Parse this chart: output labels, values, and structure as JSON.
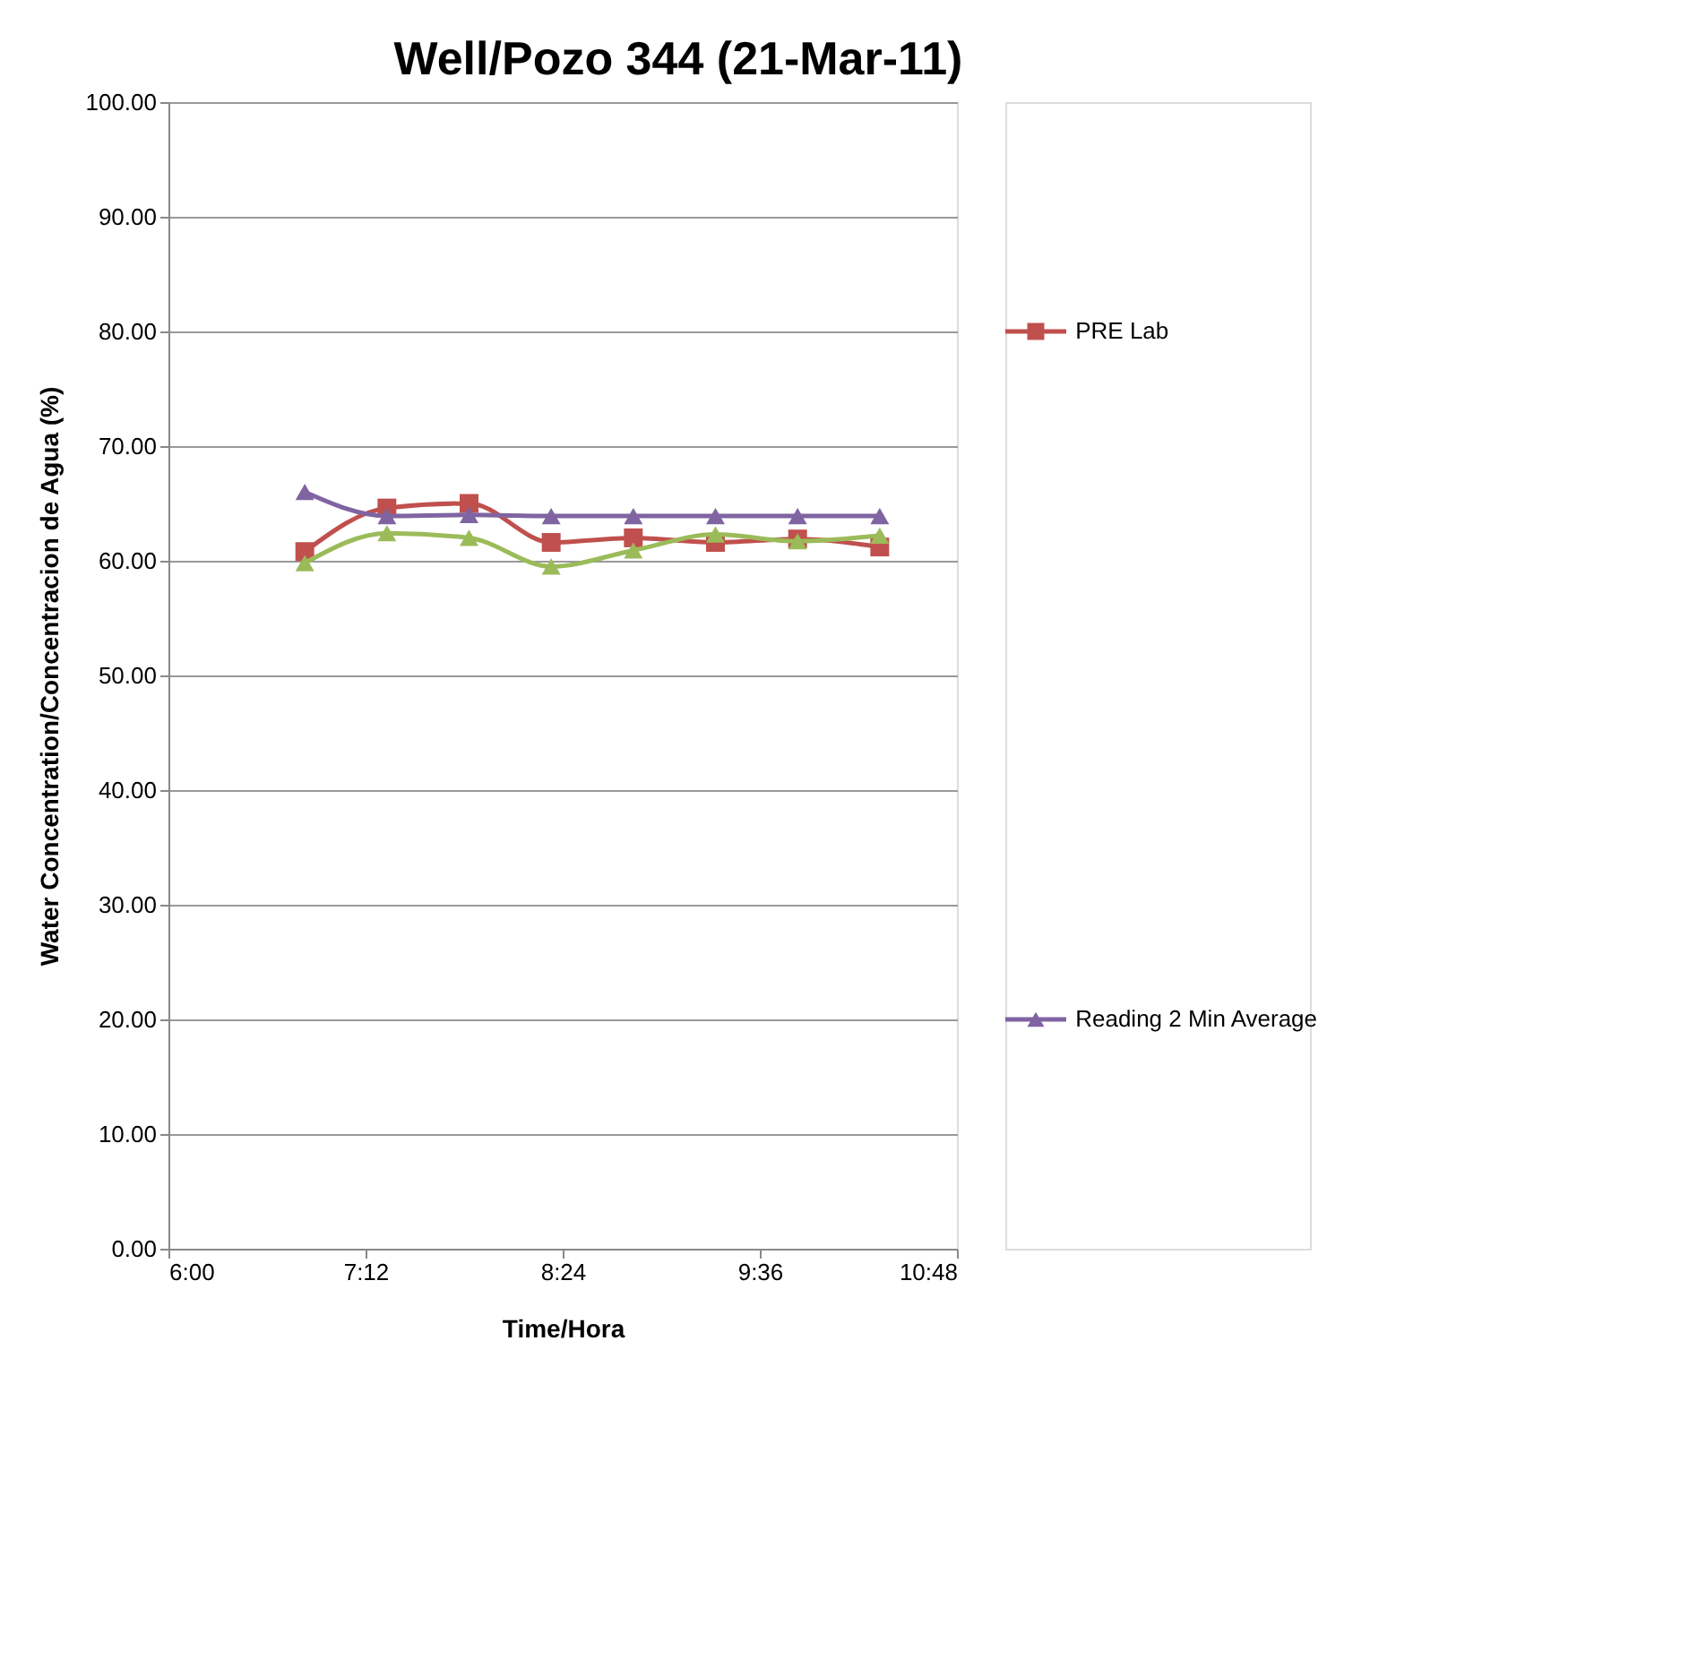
{
  "chart_data": {
    "type": "line",
    "title": "Well/Pozo 344 (21-Mar-11)",
    "xlabel": "Time/Hora",
    "ylabel": "Water Concentration/Concentracion de Agua (%)",
    "x": [
      6.83,
      7.33,
      7.83,
      8.33,
      8.83,
      9.33,
      9.83,
      10.33
    ],
    "series": [
      {
        "name": "PRE Lab",
        "color": "#c0504d",
        "marker": "square",
        "values": [
          60.8,
          64.6,
          65.0,
          61.6,
          62.0,
          61.6,
          61.9,
          61.2
        ]
      },
      {
        "color": "#9bbb59",
        "marker": "triangle",
        "values": [
          59.8,
          62.4,
          62.0,
          59.5,
          60.9,
          62.3,
          61.7,
          62.2
        ]
      },
      {
        "name": "Reading 2 Min Average",
        "color": "#8064a2",
        "marker": "triangle",
        "values": [
          66.0,
          63.9,
          64.0,
          63.9,
          63.9,
          63.9,
          63.9,
          63.9
        ]
      }
    ],
    "xlim": [
      6,
      10.8
    ],
    "xticks": [
      {
        "value": 6,
        "label": "6:00"
      },
      {
        "value": 7.2,
        "label": "7:12"
      },
      {
        "value": 8.4,
        "label": "8:24"
      },
      {
        "value": 9.6,
        "label": "9:36"
      },
      {
        "value": 10.8,
        "label": "10:48"
      }
    ],
    "ylim": [
      0,
      100
    ],
    "yticks": [
      {
        "value": 0,
        "label": "0.00"
      },
      {
        "value": 10,
        "label": "10.00"
      },
      {
        "value": 20,
        "label": "20.00"
      },
      {
        "value": 30,
        "label": "30.00"
      },
      {
        "value": 40,
        "label": "40.00"
      },
      {
        "value": 50,
        "label": "50.00"
      },
      {
        "value": 60,
        "label": "60.00"
      },
      {
        "value": 70,
        "label": "70.00"
      },
      {
        "value": 80,
        "label": "80.00"
      },
      {
        "value": 90,
        "label": "90.00"
      },
      {
        "value": 100,
        "label": "100.00"
      }
    ],
    "grid": "y",
    "legend": "right",
    "line_style": "solid"
  }
}
